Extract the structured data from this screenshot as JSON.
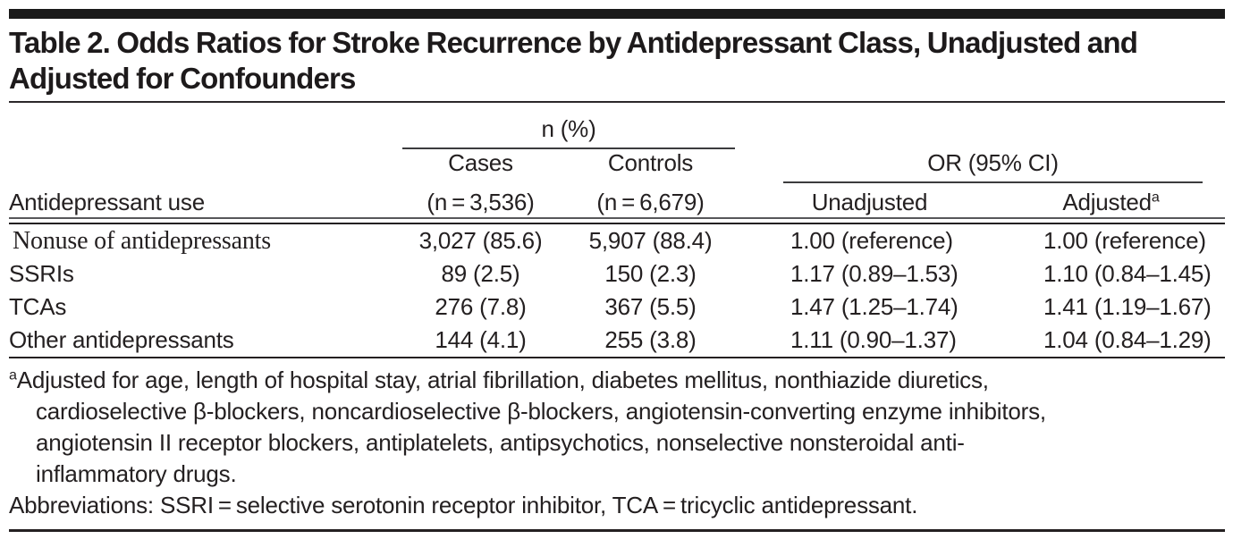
{
  "title": "Table 2. Odds Ratios for Stroke Recurrence by Antidepressant Class, Unadjusted and Adjusted for Confounders",
  "table": {
    "header": {
      "stub": "Antidepressant use",
      "n_group": "n (%)",
      "or_group": "OR (95% CI)",
      "cases": "Cases",
      "cases_n": "(n = 3,536)",
      "controls": "Controls",
      "controls_n": "(n = 6,679)",
      "unadjusted": "Unadjusted",
      "adjusted": "Adjusted",
      "adjusted_marker": "a"
    },
    "rows": [
      {
        "label": "Nonuse of antidepressants",
        "cases": "3,027 (85.6)",
        "controls": "5,907 (88.4)",
        "unadjusted": "1.00 (reference)",
        "adjusted": "1.00 (reference)"
      },
      {
        "label": "SSRIs",
        "cases": "89 (2.5)",
        "controls": "150 (2.3)",
        "unadjusted": "1.17 (0.89–1.53)",
        "adjusted": "1.10 (0.84–1.45)"
      },
      {
        "label": "TCAs",
        "cases": "276 (7.8)",
        "controls": "367 (5.5)",
        "unadjusted": "1.47 (1.25–1.74)",
        "adjusted": "1.41 (1.19–1.67)"
      },
      {
        "label": "Other antidepressants",
        "cases": "144 (4.1)",
        "controls": "255 (3.8)",
        "unadjusted": "1.11 (0.90–1.37)",
        "adjusted": "1.04 (0.84–1.29)"
      }
    ]
  },
  "footnote": {
    "marker": "a",
    "lines": [
      "Adjusted for age, length of hospital stay, atrial fibrillation, diabetes mellitus, nonthiazide diuretics,",
      "cardioselective β-blockers, noncardioselective β-blockers, angiotensin-converting enzyme inhibitors,",
      "angiotensin II receptor blockers, antiplatelets, antipsychotics, nonselective nonsteroidal anti-",
      "inflammatory drugs.",
      "Abbreviations: SSRI = selective serotonin receptor inhibitor, TCA = tricyclic antidepressant."
    ]
  },
  "colors": {
    "text": "#242021",
    "rule": "#2a2a2c",
    "top_bar": "#1a1a1a"
  }
}
